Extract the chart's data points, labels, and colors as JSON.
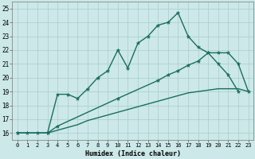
{
  "xlabel": "Humidex (Indice chaleur)",
  "bg_color": "#cce8e8",
  "grid_color": "#aacccc",
  "line_color": "#1a6e5e",
  "xlim": [
    -0.5,
    23.5
  ],
  "ylim": [
    15.5,
    25.5
  ],
  "xticks": [
    0,
    1,
    2,
    3,
    4,
    5,
    6,
    7,
    8,
    9,
    10,
    11,
    12,
    13,
    14,
    15,
    16,
    17,
    18,
    19,
    20,
    21,
    22,
    23
  ],
  "yticks": [
    16,
    17,
    18,
    19,
    20,
    21,
    22,
    23,
    24,
    25
  ],
  "curve1_x": [
    0,
    1,
    2,
    3,
    4,
    5,
    6,
    7,
    8,
    9,
    10,
    11,
    12,
    13,
    14,
    15,
    16,
    17,
    18,
    19,
    20,
    21,
    22
  ],
  "curve1_y": [
    16.0,
    16.0,
    16.0,
    16.0,
    18.8,
    18.8,
    18.5,
    19.2,
    20.0,
    20.5,
    22.0,
    20.7,
    22.5,
    23.0,
    23.8,
    24.0,
    24.7,
    23.0,
    22.2,
    21.8,
    21.0,
    20.2,
    19.0
  ],
  "curve2_x": [
    0,
    3,
    4,
    10,
    14,
    15,
    16,
    17,
    18,
    19,
    20,
    21,
    22,
    23
  ],
  "curve2_y": [
    16.0,
    16.0,
    16.5,
    18.5,
    19.8,
    20.2,
    20.5,
    20.9,
    21.2,
    21.8,
    21.8,
    21.8,
    21.0,
    19.0
  ],
  "curve3_x": [
    0,
    1,
    2,
    3,
    4,
    5,
    6,
    7,
    8,
    9,
    10,
    11,
    12,
    13,
    14,
    15,
    16,
    17,
    18,
    19,
    20,
    21,
    22,
    23
  ],
  "curve3_y": [
    16.0,
    16.0,
    16.0,
    16.0,
    16.2,
    16.4,
    16.6,
    16.9,
    17.1,
    17.3,
    17.5,
    17.7,
    17.9,
    18.1,
    18.3,
    18.5,
    18.7,
    18.9,
    19.0,
    19.1,
    19.2,
    19.2,
    19.2,
    19.0
  ]
}
